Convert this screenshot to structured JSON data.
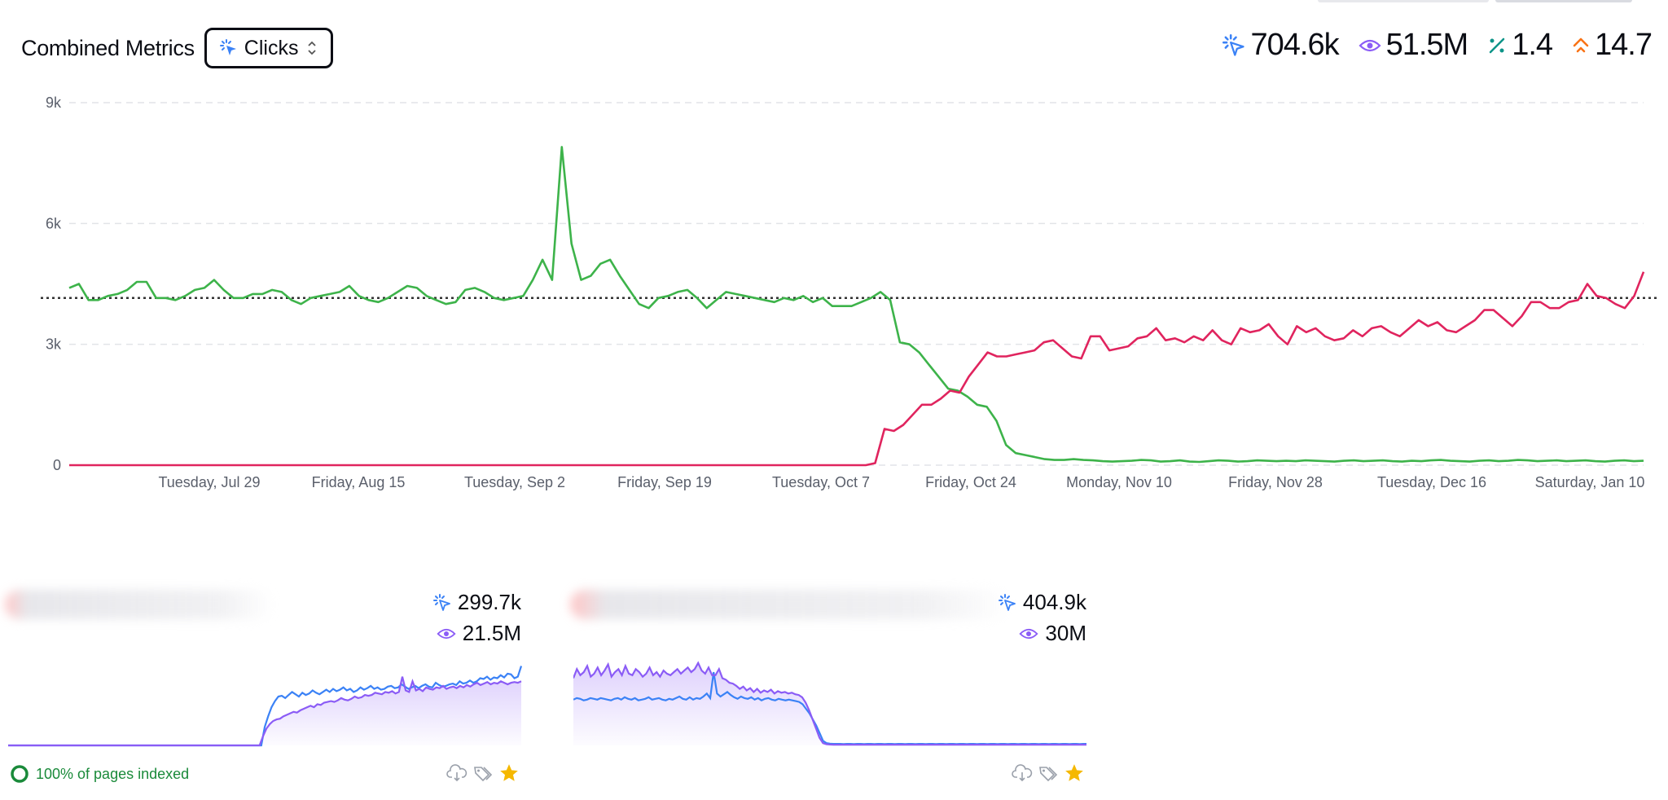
{
  "header": {
    "title": "Combined Metrics",
    "selector_label": "Clicks"
  },
  "totals": {
    "clicks": "704.6k",
    "impressions": "51.5M",
    "ctr": "1.4",
    "position": "14.7"
  },
  "colors": {
    "clicks": "#3b82f6",
    "impressions": "#8b5cf6",
    "ctr": "#0d9488",
    "position": "#f97316",
    "series_a": "#3db34a",
    "series_b": "#e0245e"
  },
  "chart_data": {
    "type": "line",
    "y_ticks": [
      "9k",
      "6k",
      "3k",
      "0"
    ],
    "ylim": [
      0,
      9000
    ],
    "x_labels": [
      "Tuesday, Jul 29",
      "Friday, Aug 15",
      "Tuesday, Sep 2",
      "Friday, Sep 19",
      "Tuesday, Oct 7",
      "Friday, Oct 24",
      "Monday, Nov 10",
      "Friday, Nov 28",
      "Tuesday, Dec 16",
      "Saturday, Jan 10"
    ],
    "average_line": 4150,
    "series": [
      {
        "color": "#3db34a",
        "values": [
          4400,
          4500,
          4100,
          4100,
          4200,
          4250,
          4350,
          4550,
          4550,
          4150,
          4150,
          4100,
          4200,
          4350,
          4400,
          4600,
          4350,
          4150,
          4150,
          4250,
          4250,
          4350,
          4300,
          4100,
          4000,
          4150,
          4200,
          4250,
          4300,
          4450,
          4200,
          4100,
          4050,
          4150,
          4300,
          4450,
          4400,
          4200,
          4100,
          4000,
          4050,
          4350,
          4400,
          4300,
          4150,
          4100,
          4150,
          4200,
          4600,
          5100,
          4600,
          7900,
          5500,
          4600,
          4700,
          5000,
          5100,
          4700,
          4350,
          4000,
          3900,
          4150,
          4200,
          4300,
          4350,
          4150,
          3900,
          4100,
          4300,
          4250,
          4200,
          4150,
          4100,
          4050,
          4150,
          4100,
          4200,
          4050,
          4150,
          3950,
          3950,
          3950,
          4050,
          4150,
          4300,
          4100,
          3050,
          3000,
          2800,
          2500,
          2200,
          1900,
          1850,
          1700,
          1500,
          1450,
          1100,
          500,
          300,
          250,
          200,
          150,
          130,
          130,
          150,
          130,
          120,
          100,
          90,
          100,
          110,
          130,
          120,
          90,
          100,
          120,
          90,
          80,
          100,
          120,
          110,
          90,
          100,
          120,
          110,
          100,
          110,
          100,
          120,
          110,
          100,
          90,
          110,
          120,
          100,
          110,
          120,
          100,
          90,
          110,
          100,
          120,
          130,
          110,
          100,
          90,
          110,
          120,
          100,
          110,
          130,
          120,
          100,
          110,
          120,
          100,
          110,
          120,
          100,
          90,
          110,
          120,
          100,
          110
        ]
      },
      {
        "color": "#e0245e",
        "values": [
          0,
          0,
          0,
          0,
          0,
          0,
          0,
          0,
          0,
          0,
          0,
          0,
          0,
          0,
          0,
          0,
          0,
          0,
          0,
          0,
          0,
          0,
          0,
          0,
          0,
          0,
          0,
          0,
          0,
          0,
          0,
          0,
          0,
          0,
          0,
          0,
          0,
          0,
          0,
          0,
          0,
          0,
          0,
          0,
          0,
          0,
          0,
          0,
          0,
          0,
          0,
          0,
          0,
          0,
          0,
          0,
          0,
          0,
          0,
          0,
          0,
          0,
          0,
          0,
          0,
          0,
          0,
          0,
          0,
          0,
          0,
          0,
          0,
          0,
          0,
          0,
          0,
          0,
          0,
          0,
          0,
          0,
          0,
          0,
          0,
          0,
          50,
          900,
          850,
          1000,
          1250,
          1500,
          1500,
          1650,
          1850,
          1800,
          2200,
          2500,
          2800,
          2700,
          2700,
          2750,
          2800,
          2850,
          3050,
          3100,
          2900,
          2700,
          2650,
          3200,
          3200,
          2850,
          2900,
          2950,
          3150,
          3200,
          3400,
          3100,
          3150,
          3050,
          3200,
          3100,
          3350,
          3100,
          3000,
          3400,
          3300,
          3350,
          3500,
          3200,
          3000,
          3450,
          3300,
          3400,
          3200,
          3100,
          3150,
          3350,
          3200,
          3400,
          3450,
          3300,
          3200,
          3400,
          3600,
          3450,
          3550,
          3350,
          3300,
          3450,
          3600,
          3850,
          3850,
          3650,
          3450,
          3700,
          4050,
          4050,
          3900,
          3900,
          4050,
          4100,
          4500,
          4200,
          4150,
          4000,
          3900,
          4200,
          4800
        ]
      }
    ]
  },
  "cards": [
    {
      "clicks": "299.7k",
      "impressions": "21.5M",
      "indexed_text": "100% of pages indexed",
      "spark_clicks": [
        0,
        0,
        0,
        0,
        0,
        0,
        0,
        0,
        0,
        0,
        0,
        0,
        0,
        0,
        0,
        0,
        0,
        0,
        0,
        0,
        0,
        0,
        0,
        0,
        0,
        0,
        0,
        0,
        0,
        0,
        0,
        0,
        0,
        0,
        0,
        0,
        0,
        0,
        0,
        0,
        0,
        0,
        0,
        0,
        0,
        0,
        0,
        0,
        0,
        0,
        0,
        0,
        0,
        0,
        0,
        0,
        0,
        0,
        0,
        0,
        0,
        0,
        0,
        0,
        0,
        0,
        0,
        0,
        0,
        0,
        0,
        0,
        0,
        0,
        0,
        1200,
        1900,
        2500,
        2900,
        3200,
        3250,
        3100,
        3300,
        3500,
        3350,
        3200,
        3450,
        3300,
        3400,
        3600,
        3450,
        3350,
        3500,
        3650,
        3500,
        3700,
        3550,
        3650,
        3800,
        3600,
        3700,
        3500,
        3600,
        3800,
        3650,
        3750,
        3900,
        3700,
        3800,
        3650,
        3700,
        3850,
        3900,
        3750,
        3800,
        4000,
        3850,
        3700,
        3800,
        3900,
        3750,
        3900,
        4000,
        3850,
        3800,
        4100,
        3950,
        3850,
        3900,
        4000,
        4050,
        3950,
        4200,
        4050,
        4100,
        4250,
        4100,
        4200,
        4400,
        4350,
        4500,
        4300,
        4450,
        4400,
        4600,
        4450,
        4700,
        4650,
        4400,
        4500,
        5200
      ],
      "spark_impr": [
        0,
        0,
        0,
        0,
        0,
        0,
        0,
        0,
        0,
        0,
        0,
        0,
        0,
        0,
        0,
        0,
        0,
        0,
        0,
        0,
        0,
        0,
        0,
        0,
        0,
        0,
        0,
        0,
        0,
        0,
        0,
        0,
        0,
        0,
        0,
        0,
        0,
        0,
        0,
        0,
        0,
        0,
        0,
        0,
        0,
        0,
        0,
        0,
        0,
        0,
        0,
        0,
        0,
        0,
        0,
        0,
        0,
        0,
        0,
        0,
        0,
        0,
        0,
        0,
        0,
        0,
        0,
        0,
        0,
        0,
        0,
        0,
        0,
        0,
        0,
        600,
        1100,
        1400,
        1600,
        1700,
        1750,
        1900,
        2000,
        2100,
        2200,
        2150,
        2300,
        2400,
        2500,
        2600,
        2500,
        2700,
        2650,
        2800,
        2850,
        2900,
        2850,
        2950,
        3100,
        3000,
        2950,
        3050,
        3200,
        3100,
        3150,
        3300,
        3250,
        3300,
        3450,
        3400,
        3350,
        3500,
        3450,
        3550,
        3400,
        3500,
        4500,
        3600,
        3500,
        4200,
        3600,
        3700,
        3550,
        3800,
        3700,
        3650,
        3800,
        3750,
        3900,
        3700,
        3800,
        3850,
        3750,
        3900,
        3800,
        3950,
        3850,
        4000,
        4100,
        3950,
        4050,
        4150,
        4000,
        4100,
        4050,
        4200,
        4100,
        4000,
        4100,
        4150,
        4100,
        4200
      ]
    },
    {
      "clicks": "404.9k",
      "impressions": "30M",
      "spark_clicks": [
        3000,
        3100,
        3050,
        2950,
        3000,
        3100,
        3050,
        3000,
        3100,
        3050,
        3000,
        2950,
        3050,
        3100,
        3000,
        3150,
        3050,
        3000,
        3100,
        2950,
        3000,
        3050,
        3150,
        3000,
        3050,
        3100,
        3000,
        2950,
        3050,
        3000,
        3100,
        3200,
        3050,
        3000,
        3150,
        3000,
        3100,
        3050,
        3200,
        3400,
        3100,
        4800,
        3400,
        3200,
        3350,
        3500,
        3300,
        3150,
        3050,
        3200,
        3100,
        3050,
        3150,
        3000,
        3100,
        2950,
        3050,
        3100,
        3000,
        2950,
        3050,
        3000,
        2950,
        3000,
        2950,
        2900,
        2850,
        2700,
        2400,
        2100,
        1700,
        1300,
        800,
        300,
        150,
        120,
        100,
        100,
        100,
        90,
        100,
        100,
        90,
        100,
        100,
        90,
        100,
        100,
        90,
        100,
        100,
        90,
        100,
        100,
        90,
        100,
        100,
        90,
        100,
        100,
        90,
        100,
        100,
        90,
        100,
        100,
        90,
        100,
        100,
        90,
        100,
        100,
        90,
        100,
        100,
        90,
        100,
        100,
        90,
        100,
        100,
        90,
        100,
        100,
        90,
        100,
        100,
        90,
        100,
        100,
        90,
        100,
        100,
        90,
        100,
        100,
        90,
        100,
        100,
        90,
        100,
        100,
        90,
        100,
        100,
        90,
        100,
        100,
        90,
        100,
        100
      ],
      "spark_impr": [
        4400,
        5000,
        4600,
        4800,
        5200,
        4500,
        4700,
        5100,
        4600,
        4900,
        5300,
        4500,
        4800,
        5000,
        4600,
        5200,
        4700,
        4600,
        5000,
        4800,
        4500,
        4700,
        5100,
        4600,
        4800,
        4500,
        4900,
        4700,
        4600,
        4800,
        5000,
        4700,
        4900,
        5100,
        4800,
        5000,
        5400,
        4900,
        4700,
        5100,
        4600,
        4600,
        5000,
        4400,
        4300,
        4100,
        4050,
        3900,
        3700,
        3850,
        3600,
        3750,
        3500,
        3700,
        3450,
        3600,
        3500,
        3650,
        3400,
        3550,
        3450,
        3500,
        3400,
        3450,
        3350,
        3300,
        3150,
        2800,
        2300,
        1700,
        1100,
        500,
        150,
        80,
        60,
        50,
        50,
        50,
        50,
        50,
        50,
        50,
        50,
        50,
        50,
        50,
        50,
        50,
        50,
        50,
        50,
        50,
        50,
        50,
        50,
        50,
        50,
        50,
        50,
        50,
        50,
        50,
        50,
        50,
        50,
        50,
        50,
        50,
        50,
        50,
        50,
        50,
        50,
        50,
        50,
        50,
        50,
        50,
        50,
        50,
        50,
        50,
        50,
        50,
        50,
        50,
        50,
        50,
        50,
        50,
        50,
        50,
        50,
        50,
        50,
        50,
        50,
        50,
        50,
        50,
        50,
        50,
        50,
        50,
        50,
        50,
        50,
        50,
        50
      ]
    }
  ]
}
